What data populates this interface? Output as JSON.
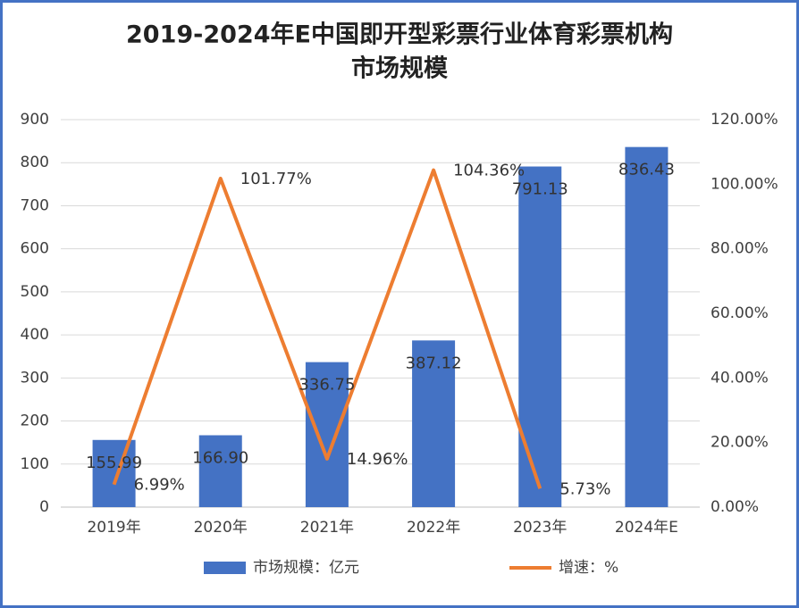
{
  "chart_data": {
    "type": "bar-line",
    "title": [
      "2019-2024年E中国即开型彩票行业体育彩票机构",
      "市场规模"
    ],
    "categories": [
      "2019年",
      "2020年",
      "2021年",
      "2022年",
      "2023年",
      "2024年E"
    ],
    "series": [
      {
        "name": "市场规模：亿元",
        "color": "#4472c4",
        "type": "bar",
        "values": [
          155.99,
          166.9,
          336.75,
          387.12,
          791.13,
          836.43
        ],
        "value_labels": [
          "155.99",
          "166.90",
          "336.75",
          "387.12",
          "791.13",
          "836.43"
        ]
      },
      {
        "name": "增速：%",
        "color": "#ed7d31",
        "type": "line",
        "axis": "y2",
        "values": [
          6.99,
          101.77,
          14.96,
          104.36,
          5.73,
          null
        ],
        "value_labels": [
          "6.99%",
          "101.77%",
          "14.96%",
          "104.36%",
          "5.73%",
          null
        ]
      }
    ],
    "ylim": [
      0,
      900
    ],
    "yticks": [
      0,
      100,
      200,
      300,
      400,
      500,
      600,
      700,
      800,
      900
    ],
    "y2lim": [
      0,
      120
    ],
    "y2ticks": [
      {
        "value": 0,
        "label": "0.00%"
      },
      {
        "value": 20,
        "label": "20.00%"
      },
      {
        "value": 40,
        "label": "40.00%"
      },
      {
        "value": 60,
        "label": "60.00%"
      },
      {
        "value": 80,
        "label": "80.00%"
      },
      {
        "value": 100,
        "label": "100.00%"
      },
      {
        "value": 120,
        "label": "120.00%"
      }
    ],
    "grid": true,
    "legend": "bottom"
  }
}
